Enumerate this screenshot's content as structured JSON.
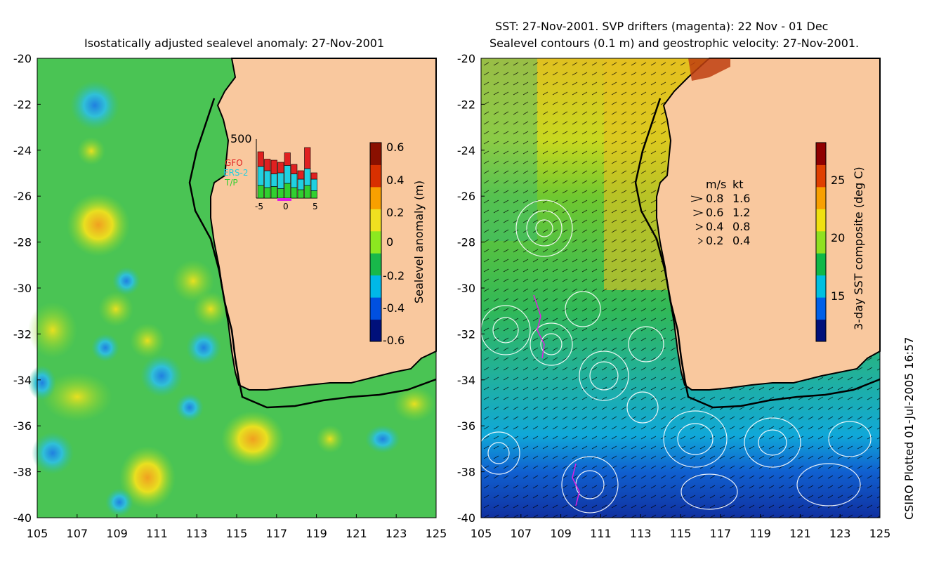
{
  "left_panel": {
    "title": "Isostatically adjusted sealevel anomaly: 27-Nov-2001",
    "colorbar": {
      "label": "Sealevel anomaly (m)",
      "ticks": [
        "0.6",
        "0.4",
        "0.2",
        "0",
        "-0.2",
        "-0.4",
        "-0.6"
      ],
      "colors": [
        "#00107a",
        "#0050e0",
        "#00b8e8",
        "#18b84a",
        "#8ce820",
        "#f0e020",
        "#f8a000",
        "#d83000",
        "#8a1000"
      ]
    },
    "inset": {
      "y_max": "500",
      "legend": [
        {
          "label": "GFO",
          "color": "#e02020"
        },
        {
          "label": "ERS-2",
          "color": "#20d0e0"
        },
        {
          "label": "T/P",
          "color": "#30d030"
        }
      ],
      "x_ticks": [
        "-5",
        "0",
        "5"
      ],
      "bars": [
        {
          "tp": 60,
          "ers": 90,
          "gfo": 70
        },
        {
          "tp": 50,
          "ers": 80,
          "gfo": 55
        },
        {
          "tp": 55,
          "ers": 60,
          "gfo": 65
        },
        {
          "tp": 45,
          "ers": 75,
          "gfo": 50
        },
        {
          "tp": 70,
          "ers": 85,
          "gfo": 60
        },
        {
          "tp": 50,
          "ers": 65,
          "gfo": 45
        },
        {
          "tp": 40,
          "ers": 50,
          "gfo": 40
        },
        {
          "tp": 60,
          "ers": 80,
          "gfo": 100
        },
        {
          "tp": 35,
          "ers": 55,
          "gfo": 30
        }
      ]
    },
    "y_ticks": [
      "-20",
      "-22",
      "-24",
      "-26",
      "-28",
      "-30",
      "-32",
      "-34",
      "-36",
      "-38",
      "-40"
    ],
    "x_ticks": [
      "105",
      "107",
      "109",
      "111",
      "113",
      "115",
      "117",
      "119",
      "121",
      "123",
      "125"
    ]
  },
  "right_panel": {
    "title_line1": "SST: 27-Nov-2001. SVP drifters (magenta): 22 Nov - 01 Dec",
    "title_line2": "Sealevel contours (0.1 m) and geostrophic velocity: 27-Nov-2001.",
    "velocity_legend": {
      "header_ms": "m/s",
      "header_kt": "kt",
      "rows": [
        {
          "ms": "0.8",
          "kt": "1.6"
        },
        {
          "ms": "0.6",
          "kt": "1.2"
        },
        {
          "ms": "0.4",
          "kt": "0.8"
        },
        {
          "ms": "0.2",
          "kt": "0.4"
        }
      ]
    },
    "colorbar": {
      "label": "3-day SST composite (deg C)",
      "ticks": [
        "25",
        "20",
        "15"
      ],
      "colors": [
        "#00107a",
        "#0060e8",
        "#00c0e0",
        "#10b848",
        "#90e020",
        "#f0e010",
        "#f8a000",
        "#e04000",
        "#900000"
      ]
    },
    "y_ticks": [
      "-20",
      "-22",
      "-24",
      "-26",
      "-28",
      "-30",
      "-32",
      "-34",
      "-36",
      "-38",
      "-40"
    ],
    "x_ticks": [
      "105",
      "107",
      "109",
      "111",
      "113",
      "115",
      "117",
      "119",
      "121",
      "123",
      "125"
    ]
  },
  "footer": {
    "credit": "CSIRO Plotted 01-Jul-2005 16:57"
  },
  "land_color": "#f9c89e"
}
